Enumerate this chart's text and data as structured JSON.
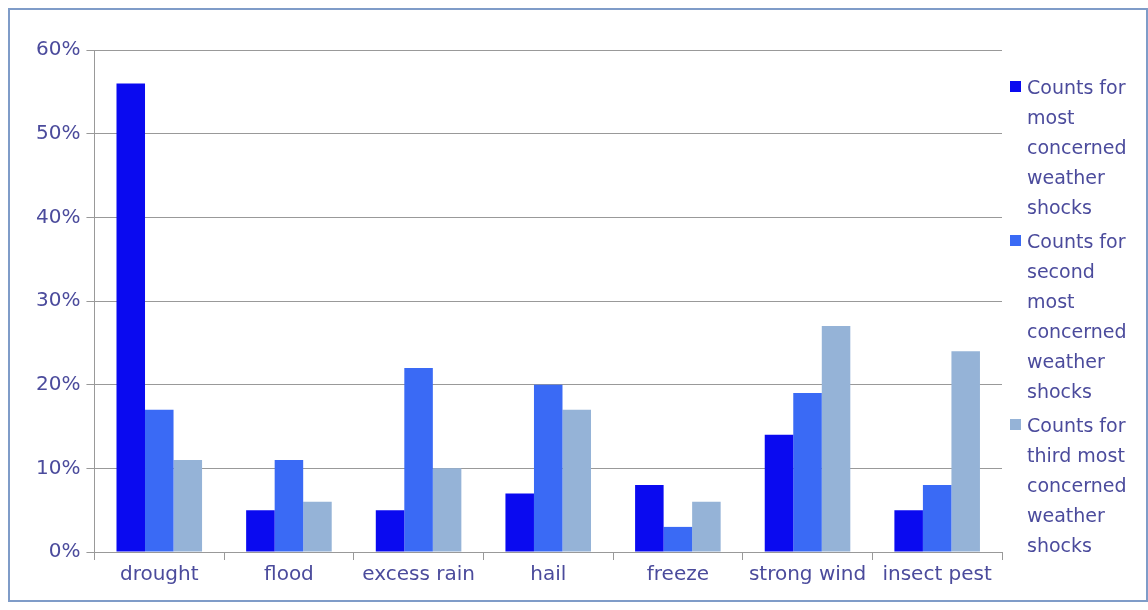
{
  "chart_data": {
    "type": "bar",
    "categories": [
      "drought",
      "flood",
      "excess rain",
      "hail",
      "freeze",
      "strong wind",
      "insect pest"
    ],
    "series": [
      {
        "name": "Counts for most concerned weather shocks",
        "color": "#0a0af0",
        "values": [
          56,
          5,
          5,
          7,
          8,
          14,
          5
        ]
      },
      {
        "name": "Counts for second most concerned weather shocks",
        "color": "#3a6af5",
        "values": [
          17,
          11,
          22,
          20,
          3,
          19,
          8
        ]
      },
      {
        "name": "Counts for third most concerned weather shocks",
        "color": "#95b3d7",
        "values": [
          11,
          6,
          10,
          17,
          6,
          27,
          24
        ]
      }
    ],
    "ylim": [
      0,
      60
    ],
    "yticks": [
      {
        "value": 0,
        "label": "0%"
      },
      {
        "value": 10,
        "label": "10%"
      },
      {
        "value": 20,
        "label": "20%"
      },
      {
        "value": 30,
        "label": "30%"
      },
      {
        "value": 40,
        "label": "40%"
      },
      {
        "value": 50,
        "label": "50%"
      },
      {
        "value": 60,
        "label": "60%"
      }
    ],
    "grid": "y",
    "legend": "right"
  }
}
